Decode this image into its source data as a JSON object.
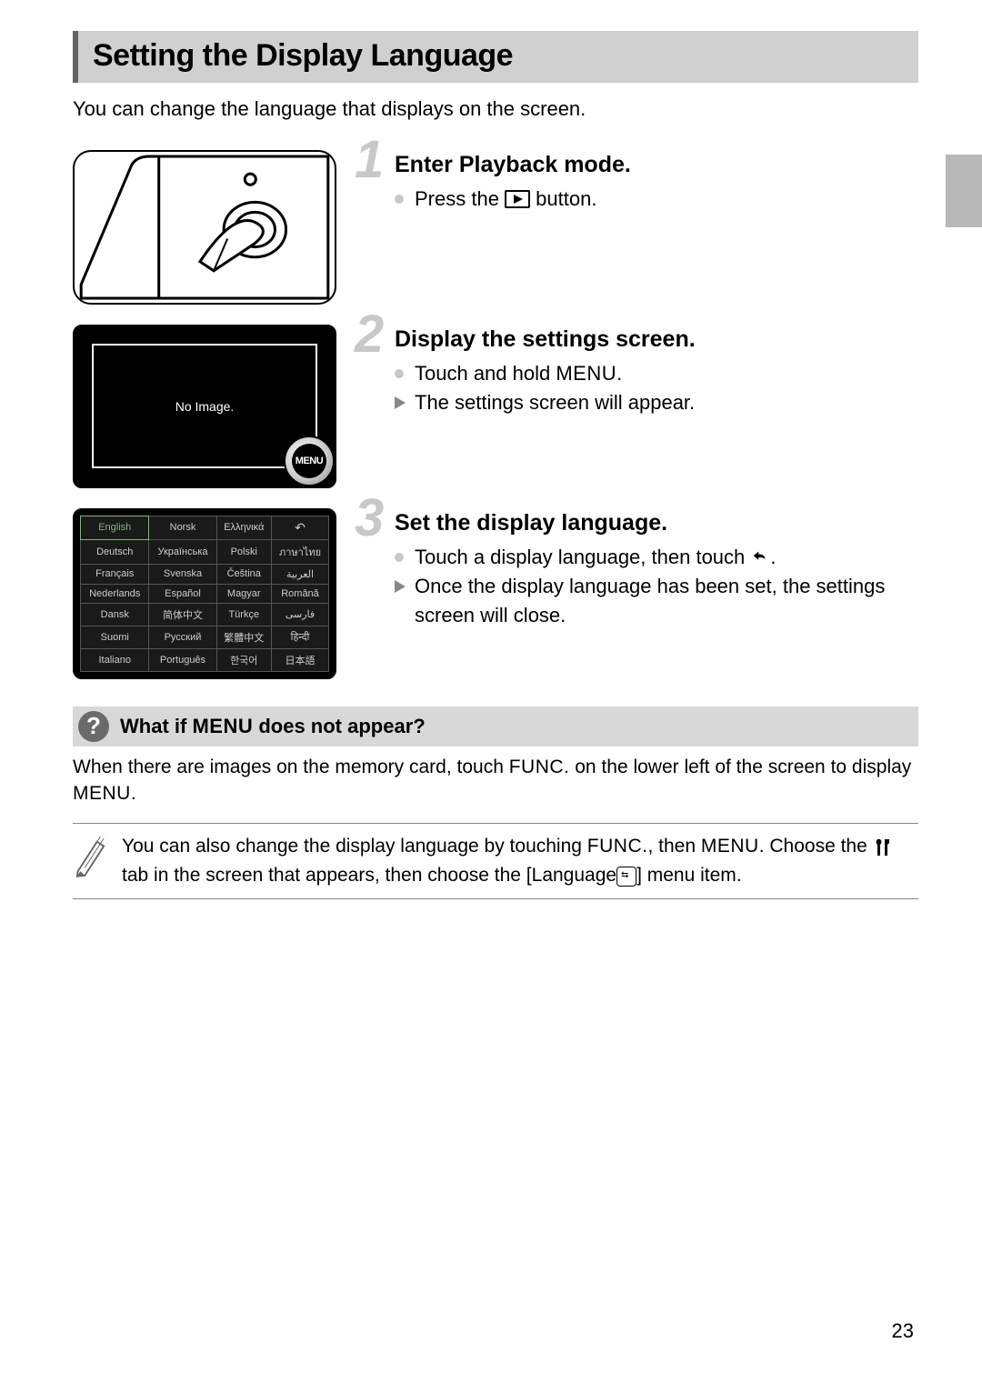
{
  "title": "Setting the Display Language",
  "intro": "You can change the language that displays on the screen.",
  "page_number": "23",
  "steps": [
    {
      "num": "1",
      "title": "Enter Playback mode.",
      "lines": [
        {
          "kind": "dot",
          "pre": "Press the ",
          "post": " button.",
          "icon": "play"
        }
      ]
    },
    {
      "num": "2",
      "title": "Display the settings screen.",
      "no_image_label": "No Image.",
      "menu_badge": "MENU",
      "lines": [
        {
          "kind": "dot",
          "pre": "Touch and hold ",
          "post": ".",
          "icon": "menu"
        },
        {
          "kind": "tri",
          "pre": "The settings screen will appear.",
          "post": ""
        }
      ]
    },
    {
      "num": "3",
      "title": "Set the display language.",
      "lines": [
        {
          "kind": "dot",
          "pre": "Touch a display language, then touch ",
          "post": ".",
          "icon": "back"
        },
        {
          "kind": "tri",
          "pre": "Once the display language has been set, the settings screen will close.",
          "post": ""
        }
      ]
    }
  ],
  "languages_grid": [
    [
      "English",
      "Norsk",
      "Ελληνικά",
      "↶"
    ],
    [
      "Deutsch",
      "Українська",
      "Polski",
      "ภาษาไทย"
    ],
    [
      "Français",
      "Svenska",
      "Čeština",
      "العربية"
    ],
    [
      "Nederlands",
      "Español",
      "Magyar",
      "Română"
    ],
    [
      "Dansk",
      "简体中文",
      "Türkçe",
      "فارسی"
    ],
    [
      "Suomi",
      "Русский",
      "繁體中文",
      "हिन्दी"
    ],
    [
      "Italiano",
      "Português",
      "한국어",
      "日本語"
    ]
  ],
  "q_box": {
    "title_pre": "What if ",
    "menu_word": "MENU",
    "title_post": " does not appear?",
    "body_pre": "When there are images on the memory card, touch ",
    "func_word": "FUNC.",
    "body_mid": " on the lower left of the screen to display ",
    "body_post": "."
  },
  "note": {
    "t1": "You can also change the display language by touching ",
    "func": "FUNC.",
    "t2": ", then ",
    "menu": "MENU",
    "t3": ". Choose the ",
    "tool": "ꝩꝩ",
    "t4": " tab in the screen that appears, then choose the [Language",
    "lang_icon": "⟲",
    "t5": "] menu item."
  },
  "colors": {
    "title_bg": "#d0d0d0",
    "title_border": "#646464",
    "big_num": "#c8c8c8",
    "tri": "#878787",
    "q_bg": "#d8d8d8",
    "q_icon_bg": "#6a6a6a",
    "side_tab": "#b8b8b8",
    "lang_sel": "#7fb86e"
  }
}
